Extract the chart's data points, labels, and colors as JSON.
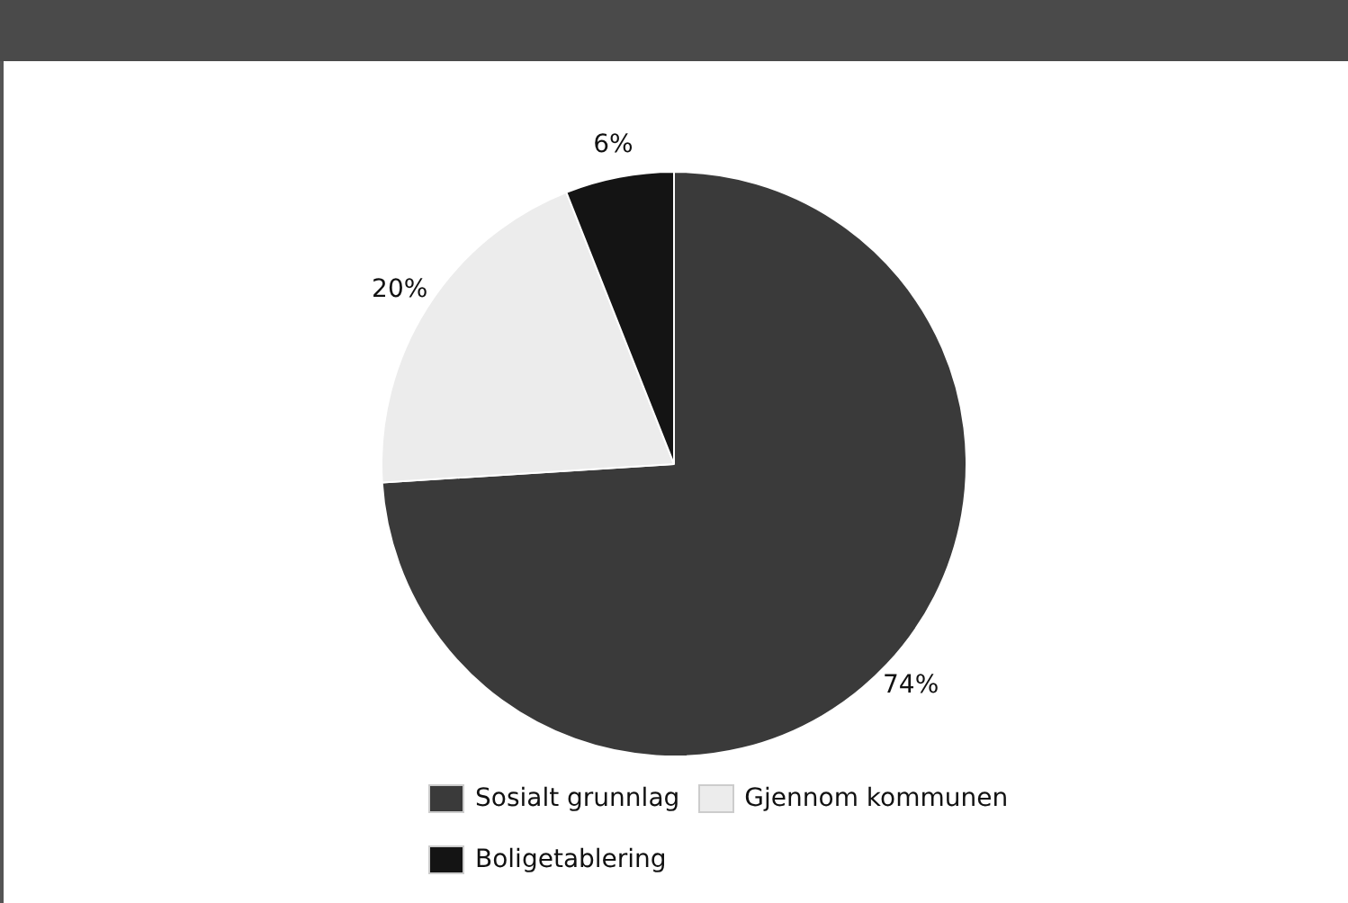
{
  "chart_data": {
    "type": "pie",
    "categories": [
      "Sosialt grunnlag",
      "Gjennom kommunen",
      "Boligetablering"
    ],
    "values": [
      74,
      20,
      6
    ],
    "colors": [
      "#3a3a3a",
      "#ececec",
      "#141414"
    ],
    "value_labels": [
      "74%",
      "20%",
      "6%"
    ],
    "legend": "bottom"
  }
}
